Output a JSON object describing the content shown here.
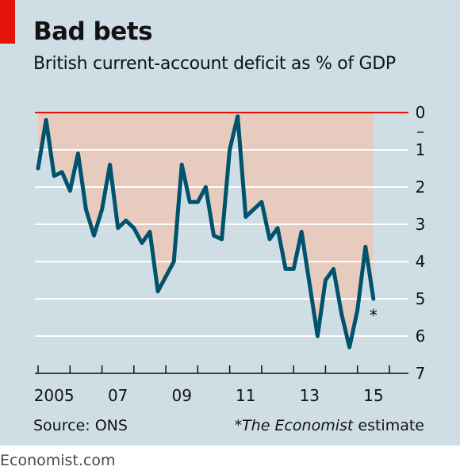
{
  "title": "Bad bets",
  "subtitle": "British current-account deficit as % of GDP",
  "source": "Source: ONS",
  "note": {
    "marker": "*",
    "publication": "The Economist",
    "suffix": " estimate"
  },
  "brand": "Economist.com",
  "colors": {
    "background": "#cfdde5",
    "line": "#00536d",
    "fill": "#e8cbbf",
    "zero_line": "#e3120b",
    "accent": "#e3120b"
  },
  "chart_data": {
    "type": "line",
    "title": "Bad bets",
    "subtitle": "British current-account deficit as % of GDP",
    "ylabel": "",
    "xlabel": "",
    "y_inverted": true,
    "ylim": [
      0,
      7
    ],
    "xlim": [
      2004.9,
      2016.15
    ],
    "yticks": [
      "0",
      "1",
      "2",
      "3",
      "4",
      "5",
      "6",
      "7"
    ],
    "ytick_minor_label": "–",
    "xtick_labels": [
      {
        "value": 2005,
        "label": "2005"
      },
      {
        "value": 2007,
        "label": "07"
      },
      {
        "value": 2009,
        "label": "09"
      },
      {
        "value": 2011,
        "label": "11"
      },
      {
        "value": 2013,
        "label": "13"
      },
      {
        "value": 2015,
        "label": "15"
      }
    ],
    "grid": true,
    "area_fill_to_zero": true,
    "series": [
      {
        "x": [
          2005.0,
          2005.25,
          2005.5,
          2005.75,
          2006.0,
          2006.25,
          2006.5,
          2006.75,
          2007.0,
          2007.25,
          2007.5,
          2007.75,
          2008.0,
          2008.25,
          2008.5,
          2008.75,
          2009.0,
          2009.25,
          2009.5,
          2009.75,
          2010.0,
          2010.25,
          2010.5,
          2010.75,
          2011.0,
          2011.25,
          2011.5,
          2011.75,
          2012.0,
          2012.25,
          2012.5,
          2012.75,
          2013.0,
          2013.25,
          2013.5,
          2013.75,
          2014.0,
          2014.25,
          2014.5,
          2014.75,
          2015.0,
          2015.25,
          2015.5
        ],
        "values": [
          1.5,
          0.2,
          1.7,
          1.6,
          2.1,
          1.1,
          2.6,
          3.3,
          2.6,
          1.4,
          3.1,
          2.9,
          3.1,
          3.5,
          3.2,
          4.8,
          4.4,
          4.0,
          1.4,
          2.4,
          2.4,
          2.0,
          3.3,
          3.4,
          1.0,
          0.1,
          2.8,
          2.6,
          2.4,
          3.4,
          3.1,
          4.2,
          4.2,
          3.2,
          4.6,
          6.0,
          4.5,
          4.2,
          5.4,
          6.3,
          5.3,
          3.6,
          5.0
        ],
        "estimate_last": true
      }
    ]
  }
}
